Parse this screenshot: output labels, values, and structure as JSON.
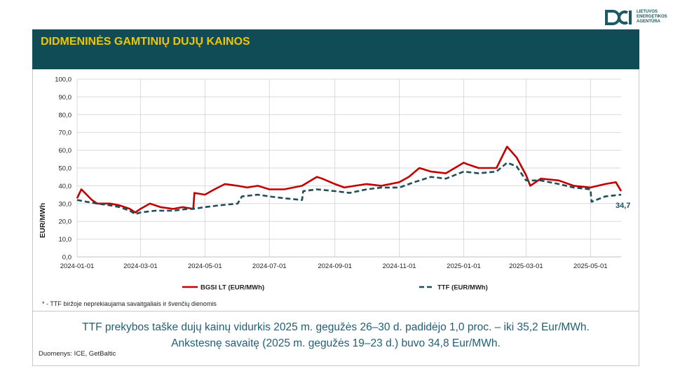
{
  "logo": {
    "text": "LIETUVOS\nENERGETIKOS\nAGENTŪRA",
    "color": "#1b5a66"
  },
  "header": {
    "title": "DIDMENINĖS GAMTINIŲ DUJŲ KAINOS",
    "bg_color": "#0f4c55",
    "title_color": "#f2c500"
  },
  "note": "* - TTF biržoje neprekiaujama savaitgaliais ir švenčių dienomis",
  "summary": {
    "line1": "TTF prekybos taške dujų kainų vidurkis 2025 m. gegužės 26–30 d. padidėjo 1,0 proc. – iki 35,2 Eur/MWh.",
    "line2": "Ankstesnę savaitę (2025 m. gegužės 19–23 d.) buvo 34,8 Eur/MWh."
  },
  "source": "Duomenys: ICE, GetBaltic",
  "chart_data": {
    "type": "line",
    "ylabel": "EUR/MWh",
    "ylim": [
      0,
      100
    ],
    "yticks": [
      "0,0",
      "10,0",
      "20,0",
      "30,0",
      "40,0",
      "50,0",
      "60,0",
      "70,0",
      "80,0",
      "90,0",
      "100,0"
    ],
    "xticks": [
      "2024-01-01",
      "2024-03-01",
      "2024-05-01",
      "2024-07-01",
      "2024-09-01",
      "2024-11-01",
      "2025-01-01",
      "2025-03-01",
      "2025-05-01"
    ],
    "xlim": [
      "2024-01-01",
      "2025-05-30"
    ],
    "grid": true,
    "legend_position": "bottom",
    "annotation": "34,7",
    "series": [
      {
        "name": "BGSI LT (EUR/MWh)",
        "color": "#c00000",
        "style": "solid",
        "x": [
          "2024-01-01",
          "2024-01-05",
          "2024-01-10",
          "2024-01-15",
          "2024-01-20",
          "2024-02-01",
          "2024-02-10",
          "2024-02-20",
          "2024-02-25",
          "2024-03-01",
          "2024-03-10",
          "2024-03-20",
          "2024-04-01",
          "2024-04-10",
          "2024-04-20",
          "2024-04-21",
          "2024-05-01",
          "2024-05-10",
          "2024-05-20",
          "2024-06-01",
          "2024-06-10",
          "2024-06-20",
          "2024-07-01",
          "2024-07-15",
          "2024-08-01",
          "2024-08-15",
          "2024-08-20",
          "2024-09-01",
          "2024-09-10",
          "2024-09-20",
          "2024-10-01",
          "2024-10-15",
          "2024-11-01",
          "2024-11-10",
          "2024-11-20",
          "2024-12-01",
          "2024-12-15",
          "2025-01-01",
          "2025-01-05",
          "2025-01-15",
          "2025-02-01",
          "2025-02-11",
          "2025-02-20",
          "2025-03-01",
          "2025-03-05",
          "2025-03-15",
          "2025-04-01",
          "2025-04-15",
          "2025-05-01",
          "2025-05-15",
          "2025-05-25",
          "2025-05-30"
        ],
        "values": [
          33,
          38,
          35,
          32,
          30,
          30,
          29,
          27,
          25,
          27,
          30,
          28,
          27,
          28,
          27,
          36,
          35,
          38,
          41,
          40,
          39,
          40,
          38,
          38,
          40,
          45,
          44,
          41,
          39,
          40,
          41,
          40,
          42,
          45,
          50,
          48,
          47,
          53,
          52,
          50,
          50,
          62,
          56,
          46,
          40,
          44,
          43,
          40,
          39,
          41,
          42,
          37
        ]
      },
      {
        "name": "TTF (EUR/MWh)",
        "color": "#1f4e5a",
        "style": "dashed",
        "x": [
          "2024-01-01",
          "2024-01-10",
          "2024-01-20",
          "2024-02-01",
          "2024-02-10",
          "2024-02-20",
          "2024-02-25",
          "2024-03-01",
          "2024-03-15",
          "2024-04-01",
          "2024-04-15",
          "2024-04-20",
          "2024-05-01",
          "2024-05-15",
          "2024-06-01",
          "2024-06-05",
          "2024-06-20",
          "2024-07-01",
          "2024-07-15",
          "2024-08-01",
          "2024-08-02",
          "2024-08-15",
          "2024-09-01",
          "2024-09-15",
          "2024-10-01",
          "2024-10-15",
          "2024-11-01",
          "2024-11-15",
          "2024-12-01",
          "2024-12-15",
          "2025-01-01",
          "2025-01-15",
          "2025-02-01",
          "2025-02-11",
          "2025-02-20",
          "2025-03-01",
          "2025-03-15",
          "2025-04-01",
          "2025-04-15",
          "2025-05-01",
          "2025-05-02",
          "2025-05-15",
          "2025-05-30"
        ],
        "values": [
          32,
          31,
          30,
          29,
          28,
          26,
          24,
          25,
          26,
          26,
          27,
          27,
          28,
          29,
          30,
          34,
          35,
          34,
          33,
          32,
          37,
          38,
          37,
          36,
          38,
          39,
          39,
          42,
          45,
          44,
          48,
          47,
          48,
          53,
          51,
          43,
          43,
          41,
          39,
          38,
          31,
          34,
          35
        ]
      }
    ]
  }
}
